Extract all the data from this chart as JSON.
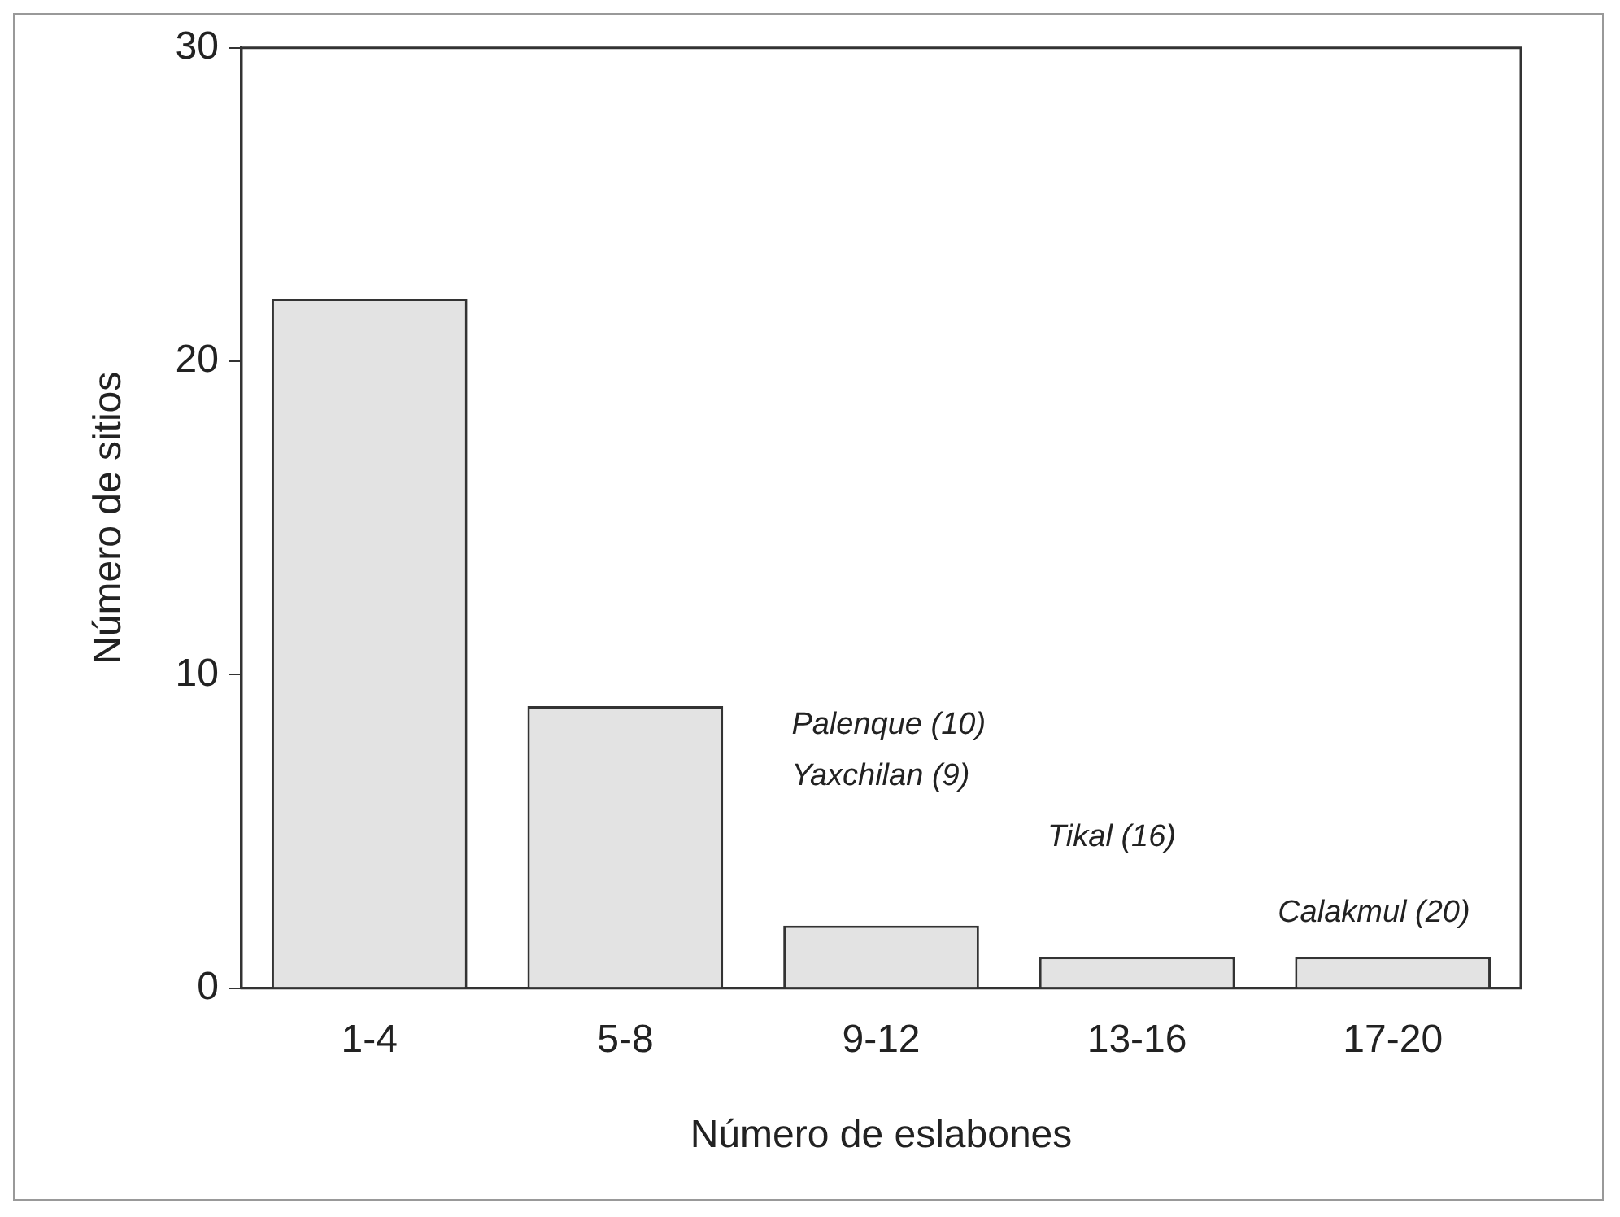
{
  "chart_data": {
    "type": "bar",
    "xlabel": "Número de eslabones",
    "ylabel": "Número de sitios",
    "categories": [
      "1-4",
      "5-8",
      "9-12",
      "13-16",
      "17-20"
    ],
    "values": [
      22,
      9,
      2,
      1,
      1
    ],
    "color": "#e3e3e3",
    "ylim": [
      0,
      30
    ],
    "yticks": [
      0,
      10,
      20,
      30
    ],
    "grid": false,
    "legend": false,
    "annotations": [
      "Palenque (10)",
      "Yaxchilan (9)",
      "Tikal (16)",
      "Calakmul (20)"
    ]
  }
}
